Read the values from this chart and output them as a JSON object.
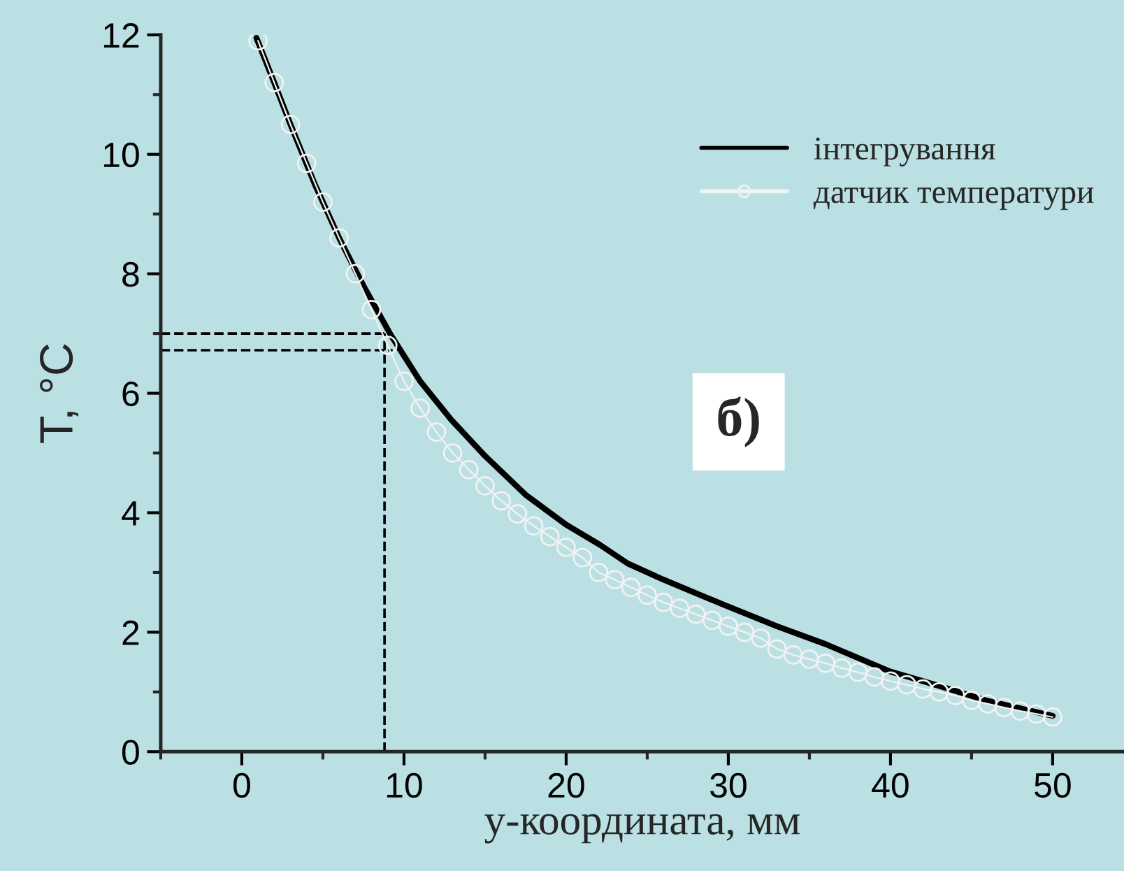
{
  "chart_data": {
    "type": "line",
    "xlabel": "y-координата, мм",
    "ylabel": "T, °C",
    "xlim": [
      -5,
      54.4
    ],
    "ylim": [
      0,
      12
    ],
    "xticks": [
      0,
      10,
      20,
      30,
      40,
      50
    ],
    "yticks": [
      0,
      2,
      4,
      6,
      8,
      10,
      12
    ],
    "grid": false,
    "legend": "top right",
    "annotations": [
      "б)"
    ],
    "ref_lines": [
      {
        "axis": "y",
        "value": 7,
        "color": "#000000",
        "line_style": "dashed"
      },
      {
        "axis": "y",
        "value": 6.72,
        "color": "#000000",
        "line_style": "dashed"
      },
      {
        "axis": "x",
        "value": 8.8,
        "color": "#000000",
        "line_style": "dashed"
      }
    ],
    "series": [
      {
        "name": "інтегрування",
        "color": "#000000",
        "marker": "none",
        "line_style": "solid",
        "x": [
          0.9,
          2,
          3,
          4.5,
          6,
          7.5,
          9.2,
          11,
          12.9,
          15,
          17.5,
          20,
          22.1,
          23.8,
          26,
          29.8,
          33,
          36,
          39.9,
          43,
          46,
          50
        ],
        "values": [
          11.95,
          11.2,
          10.5,
          9.5,
          8.6,
          7.8,
          6.97,
          6.2,
          5.56,
          4.95,
          4.3,
          3.8,
          3.46,
          3.15,
          2.88,
          2.45,
          2.1,
          1.8,
          1.35,
          1.1,
          0.85,
          0.6
        ]
      },
      {
        "name": "датчик температури",
        "color": "#f2f2f2",
        "marker": "circle",
        "line_style": "solid",
        "x": [
          1,
          2,
          3,
          4,
          5,
          6,
          7,
          8,
          9,
          10,
          11,
          12,
          13,
          14,
          15,
          16,
          17,
          18,
          19,
          20,
          21,
          22,
          23,
          24,
          25,
          26,
          27,
          28,
          29,
          30,
          31,
          32,
          33,
          34,
          35,
          36,
          37,
          38,
          39,
          40,
          41,
          42,
          43,
          44,
          45,
          46,
          47,
          48,
          49,
          50
        ],
        "values": [
          11.9,
          11.2,
          10.5,
          9.85,
          9.2,
          8.6,
          8.0,
          7.4,
          6.8,
          6.2,
          5.75,
          5.35,
          5.0,
          4.72,
          4.45,
          4.2,
          3.98,
          3.78,
          3.6,
          3.42,
          3.25,
          3.0,
          2.88,
          2.75,
          2.62,
          2.5,
          2.4,
          2.3,
          2.2,
          2.1,
          2.0,
          1.9,
          1.72,
          1.62,
          1.55,
          1.48,
          1.4,
          1.33,
          1.25,
          1.18,
          1.12,
          1.05,
          1.0,
          0.94,
          0.86,
          0.8,
          0.74,
          0.68,
          0.63,
          0.58
        ]
      }
    ]
  }
}
